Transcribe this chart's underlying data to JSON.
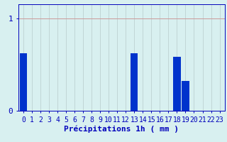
{
  "hours": [
    0,
    1,
    2,
    3,
    4,
    5,
    6,
    7,
    8,
    9,
    10,
    11,
    12,
    13,
    14,
    15,
    16,
    17,
    18,
    19,
    20,
    21,
    22,
    23
  ],
  "values": [
    0.62,
    0,
    0,
    0,
    0,
    0,
    0,
    0,
    0,
    0,
    0,
    0,
    0,
    0.62,
    0,
    0,
    0,
    0,
    0.58,
    0.32,
    0,
    0,
    0,
    0
  ],
  "bar_color": "#0033cc",
  "background_color": "#d8f0f0",
  "grid_color_h": "#cc9999",
  "grid_color_v": "#b8cccc",
  "axis_color": "#0000bb",
  "xlabel": "Précipitations 1h ( mm )",
  "ylabel_ticks": [
    "0",
    "1"
  ],
  "yticks": [
    0,
    1
  ],
  "ylim": [
    0,
    1.15
  ],
  "xlim": [
    -0.6,
    23.6
  ],
  "xlabel_fontsize": 8,
  "tick_fontsize": 7,
  "bar_width": 0.85
}
